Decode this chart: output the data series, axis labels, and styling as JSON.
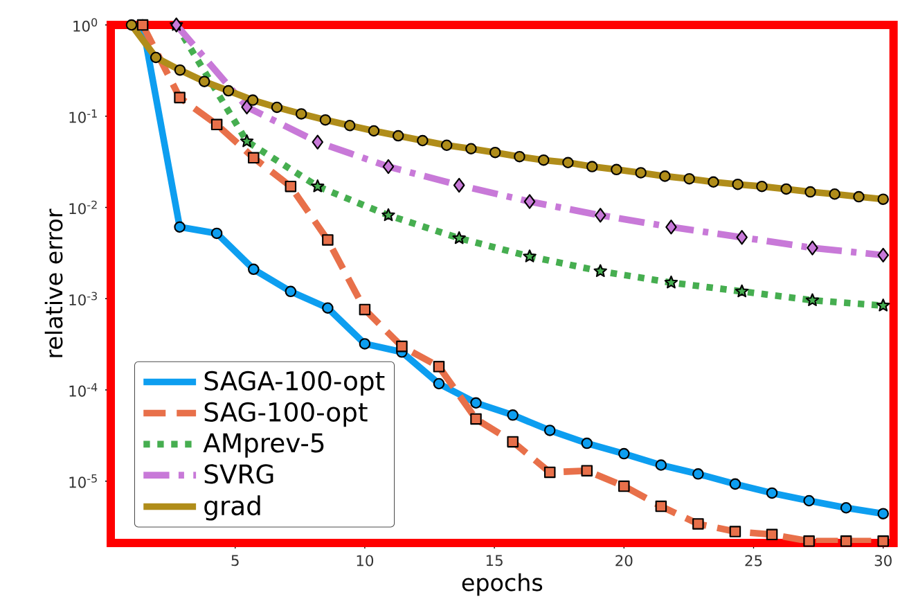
{
  "chart_data": {
    "type": "line",
    "xlabel": "epochs",
    "ylabel": "relative error",
    "log": "y",
    "grid": false,
    "legend": "bottom left",
    "xlim": [
      0.2,
      30.4
    ],
    "ylim": [
      2.1e-06,
      1
    ],
    "xticks": [
      5,
      10,
      15,
      20,
      25,
      30
    ],
    "yticks": [
      {
        "value": 1e-05,
        "label": "10$^{-5}$"
      },
      {
        "value": 0.0001,
        "label": "10$^{-4}$"
      },
      {
        "value": 0.001,
        "label": "10$^{-3}$"
      },
      {
        "value": 0.01,
        "label": "10$^{-2}$"
      },
      {
        "value": 0.1,
        "label": "10$^{-1}$"
      },
      {
        "value": 1,
        "label": "10$^{0}$"
      }
    ],
    "series": [
      {
        "name": "SAGA-100-opt",
        "color": "#0d9ef0",
        "marker": "circle",
        "line_style": "solid",
        "x": [
          1.43,
          2.86,
          4.29,
          5.71,
          7.14,
          8.57,
          10.0,
          11.43,
          12.86,
          14.29,
          15.71,
          17.14,
          18.57,
          20.0,
          21.43,
          22.86,
          24.29,
          25.71,
          27.14,
          28.57,
          30.0
        ],
        "values": [
          1.0,
          0.0061,
          0.0052,
          0.0021,
          0.0012,
          0.00079,
          0.00032,
          0.00026,
          0.000117,
          7.2e-05,
          5.3e-05,
          3.6e-05,
          2.6e-05,
          2e-05,
          1.5e-05,
          1.2e-05,
          9.3e-06,
          7.4e-06,
          6.1e-06,
          5.1e-06,
          4.4e-06
        ]
      },
      {
        "name": "SAG-100-opt",
        "color": "#e8704a",
        "marker": "square",
        "line_style": "dashed",
        "x": [
          1.43,
          2.86,
          4.29,
          5.71,
          7.14,
          8.57,
          10.0,
          11.43,
          12.86,
          14.29,
          15.71,
          17.14,
          18.57,
          20.0,
          21.43,
          22.86,
          24.29,
          25.71,
          27.14,
          28.57,
          30.0
        ],
        "values": [
          1.0,
          0.16,
          0.081,
          0.035,
          0.017,
          0.0044,
          0.00076,
          0.0003,
          0.00018,
          4.8e-05,
          2.7e-05,
          1.25e-05,
          1.3e-05,
          8.8e-06,
          5.3e-06,
          3.4e-06,
          2.8e-06,
          2.6e-06,
          2.2e-06,
          2.2e-06,
          2.2e-06
        ]
      },
      {
        "name": "AMprev-5",
        "color": "#46ae50",
        "marker": "star",
        "line_style": "dotted",
        "x": [
          2.73,
          5.45,
          8.18,
          10.91,
          13.64,
          16.36,
          19.09,
          21.82,
          24.55,
          27.27,
          30.0
        ],
        "values": [
          1.0,
          0.053,
          0.017,
          0.0082,
          0.0046,
          0.0029,
          0.002,
          0.0015,
          0.0012,
          0.00096,
          0.00084
        ]
      },
      {
        "name": "SVRG",
        "color": "#c879d8",
        "marker": "diamond",
        "line_style": "dashdot",
        "x": [
          2.73,
          5.45,
          8.18,
          10.91,
          13.64,
          16.36,
          19.09,
          21.82,
          24.55,
          27.27,
          30.0
        ],
        "values": [
          1.0,
          0.126,
          0.052,
          0.028,
          0.0175,
          0.0116,
          0.0082,
          0.0061,
          0.0047,
          0.0036,
          0.003
        ]
      },
      {
        "name": "grad",
        "color": "#b08d1a",
        "marker": "circle",
        "line_style": "solid",
        "x": [
          1.0,
          1.94,
          2.87,
          3.81,
          4.74,
          5.68,
          6.61,
          7.55,
          8.48,
          9.42,
          10.35,
          11.29,
          12.23,
          13.16,
          14.1,
          15.03,
          15.97,
          16.9,
          17.84,
          18.77,
          19.71,
          20.65,
          21.58,
          22.52,
          23.45,
          24.39,
          25.32,
          26.26,
          27.19,
          28.13,
          29.06,
          30.0
        ],
        "values": [
          1.0,
          0.44,
          0.32,
          0.24,
          0.19,
          0.15,
          0.125,
          0.106,
          0.091,
          0.079,
          0.069,
          0.061,
          0.054,
          0.048,
          0.044,
          0.04,
          0.036,
          0.033,
          0.031,
          0.028,
          0.026,
          0.024,
          0.022,
          0.0206,
          0.019,
          0.0179,
          0.017,
          0.0159,
          0.0148,
          0.014,
          0.0131,
          0.0123
        ]
      }
    ]
  }
}
